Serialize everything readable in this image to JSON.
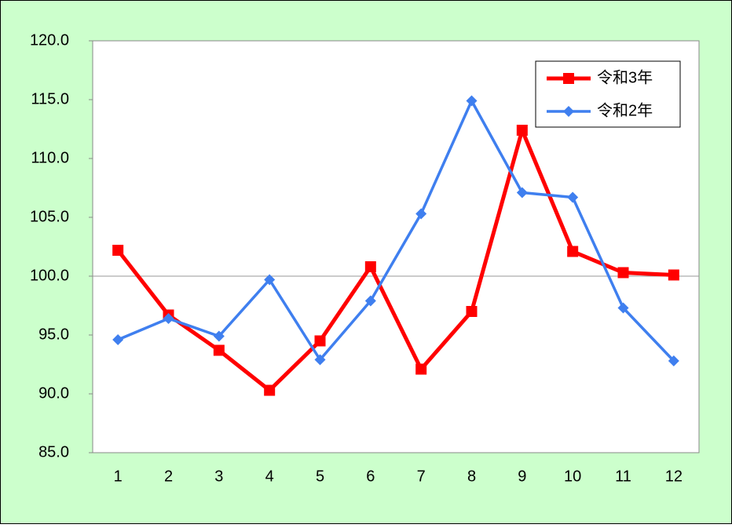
{
  "chart_data": {
    "type": "line",
    "categories": [
      "1",
      "2",
      "3",
      "4",
      "5",
      "6",
      "7",
      "8",
      "9",
      "10",
      "11",
      "12"
    ],
    "series": [
      {
        "name": "令和3年",
        "color": "#ff0000",
        "marker": "square",
        "values": [
          102.2,
          96.7,
          93.7,
          90.3,
          94.5,
          100.8,
          92.1,
          97.0,
          112.4,
          102.1,
          100.3,
          100.1
        ]
      },
      {
        "name": "令和2年",
        "color": "#3f7fef",
        "marker": "diamond",
        "values": [
          94.6,
          96.4,
          94.9,
          99.7,
          92.9,
          97.9,
          105.3,
          114.9,
          107.1,
          106.7,
          97.3,
          92.8
        ]
      }
    ],
    "ylim": [
      85,
      120
    ],
    "yticks": [
      {
        "value": 85,
        "label": "85.0"
      },
      {
        "value": 90,
        "label": "90.0"
      },
      {
        "value": 95,
        "label": "95.0"
      },
      {
        "value": 100,
        "label": "100.0"
      },
      {
        "value": 105,
        "label": "105.0"
      },
      {
        "value": 110,
        "label": "110.0"
      },
      {
        "value": 115,
        "label": "115.0"
      },
      {
        "value": 120,
        "label": "120.0"
      }
    ],
    "baseline": 100,
    "legend": "upper right"
  }
}
